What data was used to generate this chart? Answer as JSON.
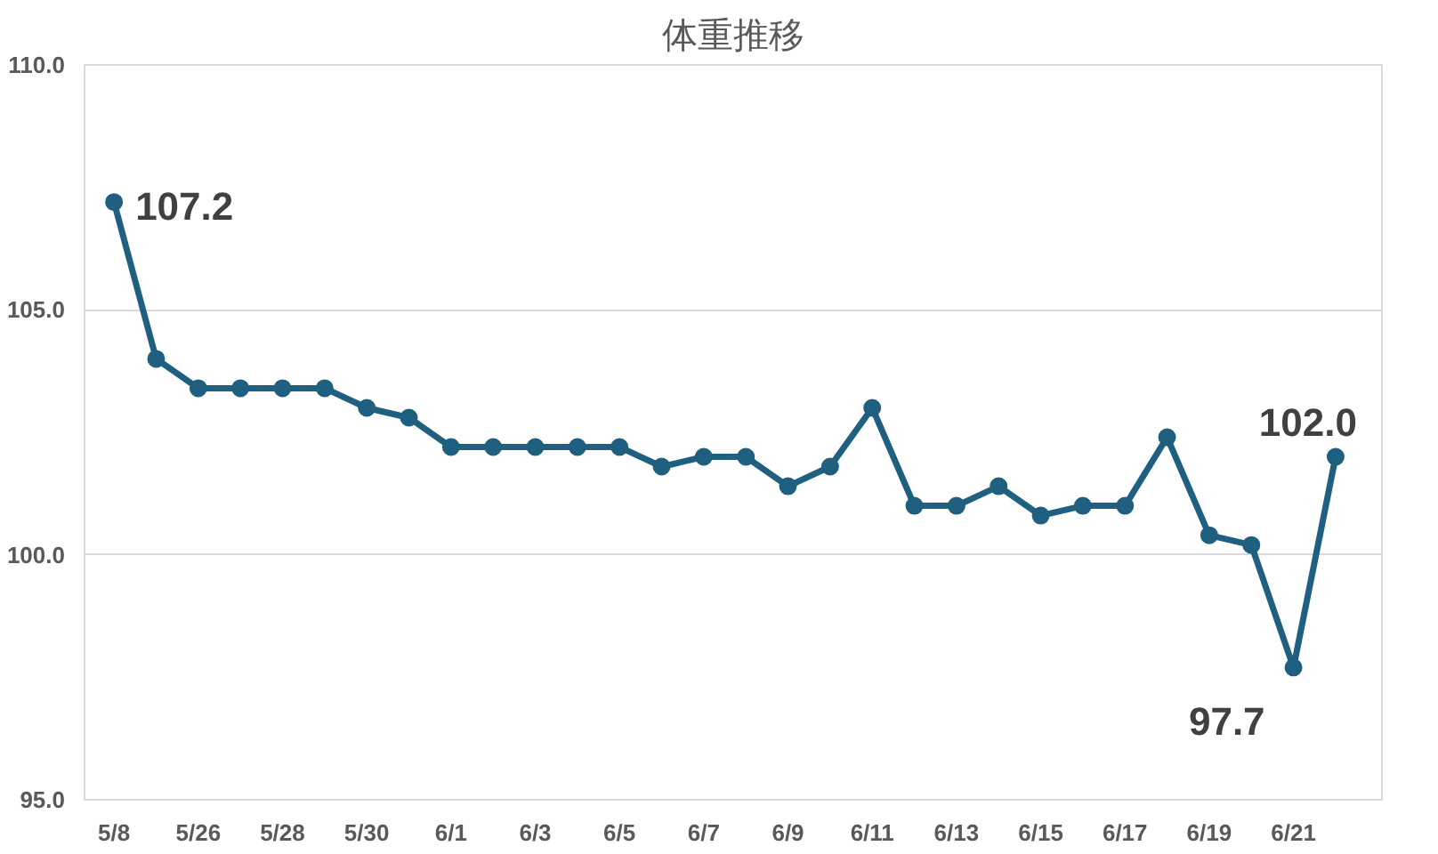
{
  "chart_data": {
    "type": "line",
    "title": "体重推移",
    "categories": [
      "5/8",
      null,
      "5/26",
      null,
      "5/28",
      null,
      "5/30",
      null,
      "6/1",
      null,
      "6/3",
      null,
      "6/5",
      null,
      "6/7",
      null,
      "6/9",
      null,
      "6/11",
      null,
      "6/13",
      null,
      "6/15",
      null,
      "6/17",
      null,
      "6/19",
      null,
      "6/21",
      null
    ],
    "series": [
      {
        "color": "#1f5f7f",
        "values": [
          107.2,
          104.0,
          103.4,
          103.4,
          103.4,
          103.4,
          103.0,
          102.8,
          102.2,
          102.2,
          102.2,
          102.2,
          102.2,
          101.8,
          102.0,
          102.0,
          101.4,
          101.8,
          103.0,
          101.0,
          101.0,
          101.4,
          100.8,
          101.0,
          101.0,
          102.4,
          100.4,
          100.2,
          97.7,
          102.0
        ],
        "value_labels": [
          "107.2",
          null,
          null,
          null,
          null,
          null,
          null,
          null,
          null,
          null,
          null,
          null,
          null,
          null,
          null,
          null,
          null,
          null,
          null,
          null,
          null,
          null,
          null,
          null,
          null,
          null,
          null,
          null,
          "97.7",
          "102.0"
        ]
      }
    ],
    "ylim": [
      95,
      110
    ],
    "yticks": [
      {
        "value": 95,
        "label": "95.0"
      },
      {
        "value": 100,
        "label": "100.0"
      },
      {
        "value": 105,
        "label": "105.0"
      },
      {
        "value": 110,
        "label": "110.0"
      }
    ],
    "grid": "y",
    "marker": "circle",
    "line_style": "solid"
  }
}
